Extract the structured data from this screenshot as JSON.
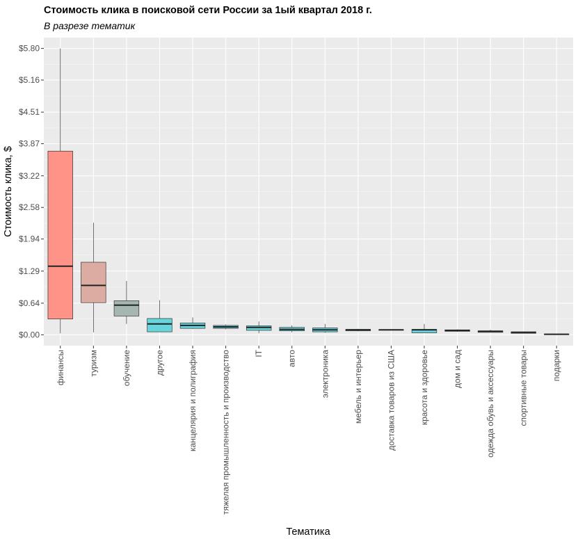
{
  "chart_data": {
    "type": "boxplot",
    "title": "Стоимость клика в поисковой сети России за 1ый квартал 2018 г.",
    "subtitle": "В разрезе тематик",
    "xlabel": "Тематика",
    "ylabel": "Стоимость клика, $",
    "ylim": [
      -0.22,
      6.02
    ],
    "yticks": [
      0.0,
      0.64,
      1.29,
      1.94,
      2.58,
      3.22,
      3.87,
      4.51,
      5.16,
      5.8
    ],
    "ytick_labels": [
      "$0.00",
      "$0.64",
      "$1.29",
      "$1.94",
      "$2.58",
      "$3.22",
      "$3.87",
      "$4.51",
      "$5.16",
      "$5.80"
    ],
    "grid": true,
    "legend": "none",
    "categories": [
      "финансы",
      "туризм",
      "обучение",
      "другое",
      "канцелярия и полиграфия",
      "тяжелая промышленность и производство",
      "IT",
      "авто",
      "электроника",
      "мебель и интерьер",
      "доставка товаров из США",
      "красота и здоровье",
      "дом и сад",
      "одежда обувь и аксессуары",
      "спортивные товары",
      "подарки"
    ],
    "boxes": [
      {
        "min": 0.03,
        "q1": 0.32,
        "median": 1.39,
        "q3": 3.72,
        "max": 5.8,
        "color": "#ff9387"
      },
      {
        "min": 0.05,
        "q1": 0.65,
        "median": 1.0,
        "q3": 1.47,
        "max": 2.27,
        "color": "#dcaca2"
      },
      {
        "min": 0.22,
        "q1": 0.38,
        "median": 0.6,
        "q3": 0.69,
        "max": 1.09,
        "color": "#a6b6b1"
      },
      {
        "min": 0.06,
        "q1": 0.06,
        "median": 0.22,
        "q3": 0.33,
        "max": 0.7,
        "color": "#67d5dc"
      },
      {
        "min": 0.12,
        "q1": 0.13,
        "median": 0.19,
        "q3": 0.24,
        "max": 0.35,
        "color": "#67d5dc"
      },
      {
        "min": 0.11,
        "q1": 0.13,
        "median": 0.16,
        "q3": 0.19,
        "max": 0.21,
        "color": "#67d5dc"
      },
      {
        "min": 0.03,
        "q1": 0.09,
        "median": 0.15,
        "q3": 0.18,
        "max": 0.27,
        "color": "#67d5dc"
      },
      {
        "min": 0.05,
        "q1": 0.08,
        "median": 0.11,
        "q3": 0.15,
        "max": 0.19,
        "color": "#67d5dc"
      },
      {
        "min": 0.04,
        "q1": 0.06,
        "median": 0.1,
        "q3": 0.14,
        "max": 0.22,
        "color": "#67d5dc"
      },
      {
        "min": 0.07,
        "q1": 0.08,
        "median": 0.1,
        "q3": 0.11,
        "max": 0.12,
        "color": "#67d5dc"
      },
      {
        "min": 0.1,
        "q1": 0.1,
        "median": 0.1,
        "q3": 0.1,
        "max": 0.1,
        "color": "#67d5dc"
      },
      {
        "min": 0.04,
        "q1": 0.04,
        "median": 0.1,
        "q3": 0.11,
        "max": 0.22,
        "color": "#67d5dc"
      },
      {
        "min": 0.06,
        "q1": 0.07,
        "median": 0.09,
        "q3": 0.1,
        "max": 0.11,
        "color": "#67d5dc"
      },
      {
        "min": 0.05,
        "q1": 0.05,
        "median": 0.07,
        "q3": 0.08,
        "max": 0.1,
        "color": "#67d5dc"
      },
      {
        "min": 0.03,
        "q1": 0.03,
        "median": 0.05,
        "q3": 0.06,
        "max": 0.06,
        "color": "#67d5dc"
      },
      {
        "min": 0.01,
        "q1": 0.01,
        "median": 0.01,
        "q3": 0.01,
        "max": 0.01,
        "color": "#67d5dc"
      }
    ]
  }
}
